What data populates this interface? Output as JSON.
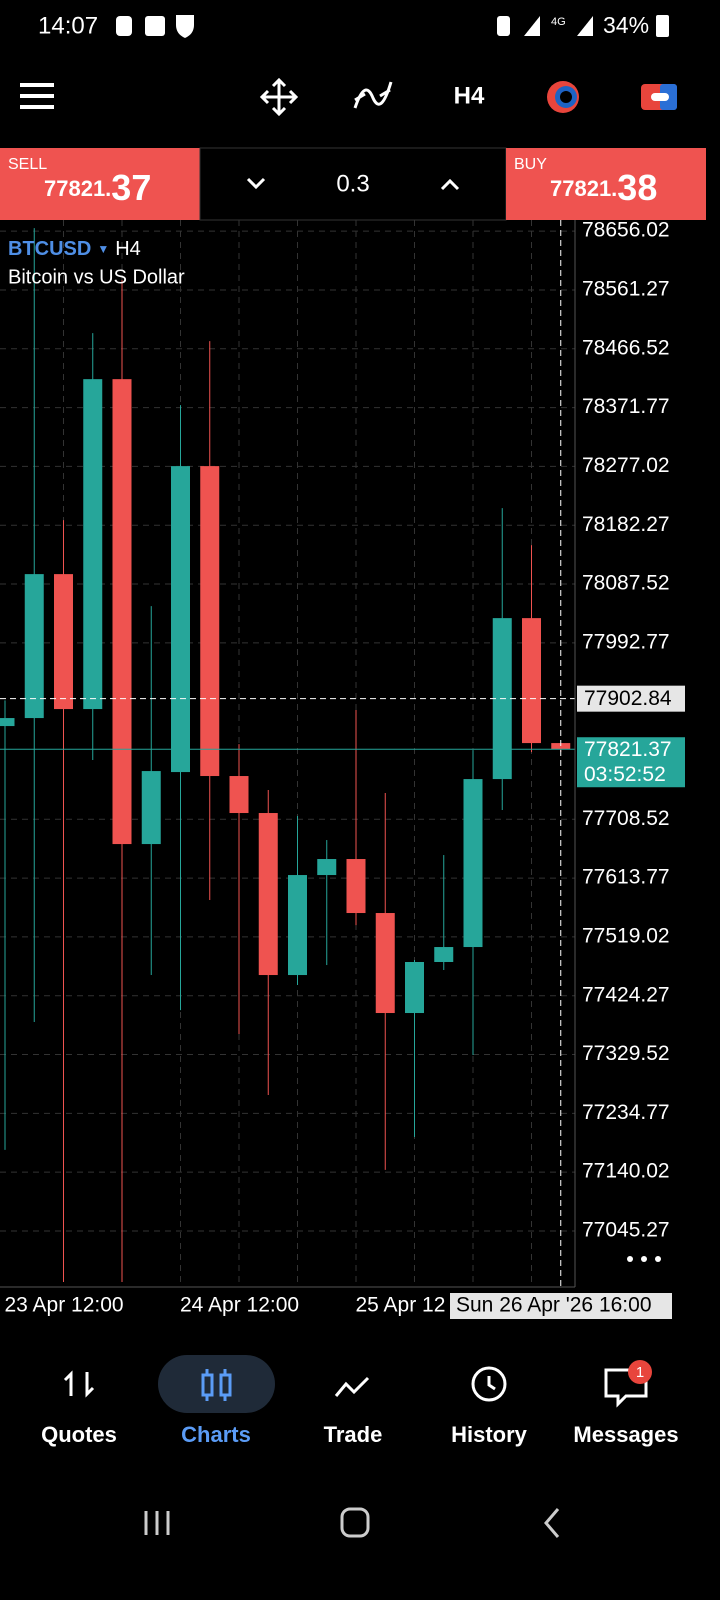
{
  "status_bar": {
    "time": "14:07",
    "network": "4G",
    "battery": "34%"
  },
  "toolbar": {
    "timeframe": "H4"
  },
  "trade_panel": {
    "sell_label": "SELL",
    "sell_price_main": "77821.",
    "sell_price_pips": "37",
    "volume": "0.3",
    "buy_label": "BUY",
    "buy_price_main": "77821.",
    "buy_price_pips": "38"
  },
  "chart_data": {
    "type": "candlestick",
    "symbol": "BTCUSD",
    "timeframe": "H4",
    "title": "Bitcoin vs US Dollar",
    "categories": [
      null,
      null,
      "23 Apr 12:00",
      null,
      null,
      null,
      null,
      null,
      "24 Apr 12:00",
      null,
      null,
      null,
      null,
      null,
      "25 Apr 12",
      null,
      null,
      null,
      null,
      "Sun 26 Apr '26 16:00"
    ],
    "open": [
      77858.7,
      77871.6,
      78103.5,
      77886.1,
      78417.6,
      77668.6,
      77784.6,
      78277.5,
      77778.2,
      77718.6,
      77457.6,
      77618.7,
      77644.5,
      77557.5,
      77396.4,
      77478.6,
      77502.7,
      77773.3,
      78032.6,
      77831.3
    ],
    "high": [
      77900,
      78660.9,
      78190.5,
      78491.7,
      78577.1,
      78052,
      78375.8,
      78478.8,
      77829.7,
      77755.6,
      77713.8,
      77675.1,
      77884.5,
      77750.8,
      77481.8,
      77650.9,
      77820,
      78209.8,
      78150.3,
      77831.3
    ],
    "low": [
      77176,
      77382,
      76963,
      77804,
      76963,
      77457.6,
      77401,
      77578.5,
      77362.6,
      77264.4,
      77441.5,
      77473.7,
      77538,
      77143.6,
      77196.7,
      77465.7,
      77328.8,
      77723.4,
      77816.8,
      77816.8
    ],
    "close": [
      77871.6,
      78103.5,
      77886.1,
      78417.6,
      77668.6,
      77786.2,
      78277.5,
      77778.2,
      77718.6,
      77457.6,
      77618.7,
      77644.5,
      77557.5,
      77396.4,
      77478.6,
      77502.7,
      77773.3,
      78032.6,
      77831.3,
      77821.37
    ],
    "up_color": "#26a69a",
    "down_color": "#ef5350",
    "ylim": [
      76955,
      78674
    ],
    "yticks": [
      78656.02,
      78561.27,
      78466.52,
      78371.77,
      78277.02,
      78182.27,
      78087.52,
      77992.77,
      77708.52,
      77613.77,
      77519.02,
      77424.27,
      77329.52,
      77234.77,
      77140.02,
      77045.27
    ],
    "grid": true,
    "current_price": 77821.37,
    "current_price_timer": "03:52:52",
    "crosshair_price": 77902.84
  },
  "nav": {
    "items": [
      "Quotes",
      "Charts",
      "Trade",
      "History",
      "Messages"
    ],
    "badge": "1"
  }
}
